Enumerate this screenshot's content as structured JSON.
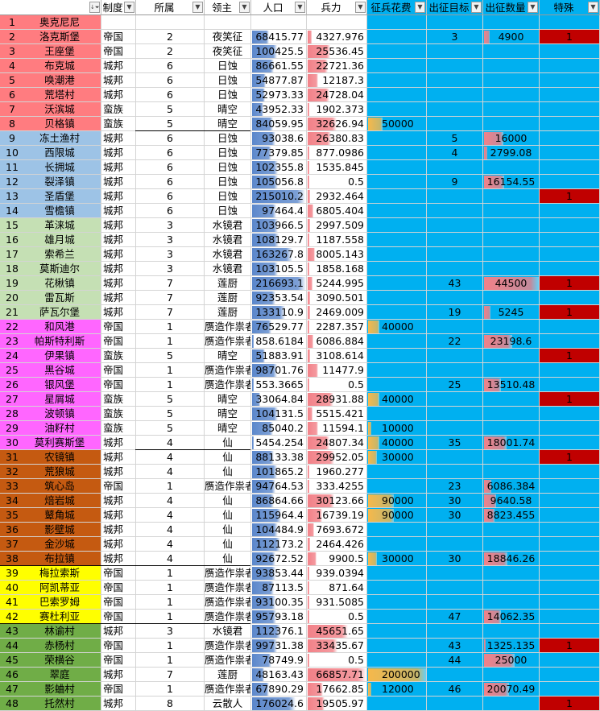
{
  "headers": [
    {
      "label": "",
      "filter_icon": "sort-filter-icon"
    },
    {
      "label": "制度",
      "filter_icon": "filter-dropdown-icon"
    },
    {
      "label": "所属",
      "filter_icon": "filter-dropdown-icon"
    },
    {
      "label": "领主",
      "filter_icon": "filter-dropdown-icon"
    },
    {
      "label": "人口",
      "filter_icon": "filter-dropdown-icon"
    },
    {
      "label": "兵力",
      "filter_icon": "filter-dropdown-icon"
    },
    {
      "label": "征兵花费",
      "filter_icon": "filter-dropdown-icon"
    },
    {
      "label": "出征目标",
      "filter_icon": "filter-dropdown-icon"
    },
    {
      "label": "出征数量",
      "filter_icon": "filter-dropdown-icon"
    },
    {
      "label": "特殊",
      "filter_icon": "filter-dropdown-icon"
    }
  ],
  "colors": {
    "blue_column": "#00b0f0",
    "pop_bar": "#5b87cb",
    "troop_bar": "#f28188",
    "cost_bar": "#f6b84b",
    "qty_bar": "#f28188",
    "special_fill": "#c00000",
    "group": [
      "#ff7c80",
      "#9dc3e6",
      "#c5e0b4",
      "#ff66ff",
      "#c55a11",
      "#ffff00",
      "#70ad47"
    ]
  },
  "scale": {
    "pop_max": 216693.1,
    "troop_max": 66857.71,
    "cost_max": 200000,
    "qty_max": 44500
  },
  "rows": [
    {
      "id": "1",
      "name": "奥克尼尼",
      "regime": "",
      "faction": "",
      "lord": "",
      "pop": "",
      "troops": "",
      "cost": "",
      "target": "",
      "qty": "",
      "special": ""
    },
    {
      "id": "2",
      "name": "洛克斯堡",
      "regime": "帝国",
      "faction": "2",
      "lord": "夜笑征",
      "pop": "68415.77",
      "troops": "4327.976",
      "cost": "",
      "target": "3",
      "qty": "4900",
      "special": "1"
    },
    {
      "id": "3",
      "name": "王座堡",
      "regime": "帝国",
      "faction": "2",
      "lord": "夜笑征",
      "pop": "100425.5",
      "troops": "25536.45",
      "cost": "",
      "target": "",
      "qty": "",
      "special": ""
    },
    {
      "id": "4",
      "name": "布克城",
      "regime": "城邦",
      "faction": "6",
      "lord": "日蚀",
      "pop": "86661.55",
      "troops": "22721.36",
      "cost": "",
      "target": "",
      "qty": "",
      "special": ""
    },
    {
      "id": "5",
      "name": "唤潮港",
      "regime": "城邦",
      "faction": "6",
      "lord": "日蚀",
      "pop": "54877.87",
      "troops": "12187.3",
      "cost": "",
      "target": "",
      "qty": "",
      "special": ""
    },
    {
      "id": "6",
      "name": "荒塔村",
      "regime": "城邦",
      "faction": "6",
      "lord": "日蚀",
      "pop": "52973.33",
      "troops": "24728.04",
      "cost": "",
      "target": "",
      "qty": "",
      "special": ""
    },
    {
      "id": "7",
      "name": "沃滨城",
      "regime": "蛮族",
      "faction": "5",
      "lord": "晴空",
      "pop": "43952.33",
      "troops": "1902.373",
      "cost": "",
      "target": "",
      "qty": "",
      "special": ""
    },
    {
      "id": "8",
      "name": "贝格镇",
      "regime": "蛮族",
      "faction": "5",
      "lord": "晴空",
      "pop": "84059.95",
      "troops": "32626.94",
      "cost": "50000",
      "target": "",
      "qty": "",
      "special": ""
    },
    {
      "id": "9",
      "name": "冻土渔村",
      "regime": "城邦",
      "faction": "6",
      "lord": "日蚀",
      "pop": "93038.6",
      "troops": "26380.83",
      "cost": "",
      "target": "5",
      "qty": "16000",
      "special": ""
    },
    {
      "id": "10",
      "name": "西限城",
      "regime": "城邦",
      "faction": "6",
      "lord": "日蚀",
      "pop": "77379.85",
      "troops": "877.0986",
      "cost": "",
      "target": "4",
      "qty": "2799.08",
      "special": ""
    },
    {
      "id": "11",
      "name": "长拥城",
      "regime": "城邦",
      "faction": "6",
      "lord": "日蚀",
      "pop": "102355.8",
      "troops": "1535.845",
      "cost": "",
      "target": "",
      "qty": "",
      "special": ""
    },
    {
      "id": "12",
      "name": "裂泽镇",
      "regime": "城邦",
      "faction": "6",
      "lord": "日蚀",
      "pop": "105056.8",
      "troops": "0.5",
      "cost": "",
      "target": "9",
      "qty": "16154.55",
      "special": ""
    },
    {
      "id": "13",
      "name": "圣盾堡",
      "regime": "城邦",
      "faction": "6",
      "lord": "日蚀",
      "pop": "215010.2",
      "troops": "2932.464",
      "cost": "",
      "target": "",
      "qty": "",
      "special": "1"
    },
    {
      "id": "14",
      "name": "雪檐镇",
      "regime": "城邦",
      "faction": "6",
      "lord": "日蚀",
      "pop": "97464.4",
      "troops": "6805.404",
      "cost": "",
      "target": "",
      "qty": "",
      "special": ""
    },
    {
      "id": "15",
      "name": "革涞城",
      "regime": "城邦",
      "faction": "3",
      "lord": "水镜君",
      "pop": "103966.5",
      "troops": "2997.509",
      "cost": "",
      "target": "",
      "qty": "",
      "special": ""
    },
    {
      "id": "16",
      "name": "雄月城",
      "regime": "城邦",
      "faction": "3",
      "lord": "水镜君",
      "pop": "108129.7",
      "troops": "1187.558",
      "cost": "",
      "target": "",
      "qty": "",
      "special": ""
    },
    {
      "id": "17",
      "name": "索希兰",
      "regime": "城邦",
      "faction": "3",
      "lord": "水镜君",
      "pop": "163267.8",
      "troops": "8005.143",
      "cost": "",
      "target": "",
      "qty": "",
      "special": ""
    },
    {
      "id": "18",
      "name": "莫斯迪尔",
      "regime": "城邦",
      "faction": "3",
      "lord": "水镜君",
      "pop": "103105.5",
      "troops": "1858.168",
      "cost": "",
      "target": "",
      "qty": "",
      "special": ""
    },
    {
      "id": "19",
      "name": "花楸镇",
      "regime": "城邦",
      "faction": "7",
      "lord": "莲厨",
      "pop": "216693.1",
      "troops": "5244.995",
      "cost": "",
      "target": "43",
      "qty": "44500",
      "special": "1"
    },
    {
      "id": "20",
      "name": "雷瓦斯",
      "regime": "城邦",
      "faction": "7",
      "lord": "莲厨",
      "pop": "92353.54",
      "troops": "3090.501",
      "cost": "",
      "target": "",
      "qty": "",
      "special": ""
    },
    {
      "id": "21",
      "name": "萨瓦尔堡",
      "regime": "城邦",
      "faction": "7",
      "lord": "莲厨",
      "pop": "133110.9",
      "troops": "2469.009",
      "cost": "",
      "target": "19",
      "qty": "5245",
      "special": "1"
    },
    {
      "id": "22",
      "name": "和风港",
      "regime": "帝国",
      "faction": "1",
      "lord": "赝造作祟者",
      "pop": "76529.77",
      "troops": "2287.357",
      "cost": "40000",
      "target": "",
      "qty": "",
      "special": ""
    },
    {
      "id": "23",
      "name": "帕斯特利斯",
      "regime": "帝国",
      "faction": "1",
      "lord": "赝造作祟者",
      "pop": "858.6184",
      "troops": "6086.884",
      "cost": "",
      "target": "22",
      "qty": "23198.6",
      "special": ""
    },
    {
      "id": "24",
      "name": "伊果镇",
      "regime": "蛮族",
      "faction": "5",
      "lord": "晴空",
      "pop": "51883.91",
      "troops": "3108.614",
      "cost": "",
      "target": "",
      "qty": "",
      "special": "1"
    },
    {
      "id": "25",
      "name": "黑谷城",
      "regime": "帝国",
      "faction": "1",
      "lord": "赝造作祟者",
      "pop": "98701.76",
      "troops": "11477.9",
      "cost": "",
      "target": "",
      "qty": "",
      "special": ""
    },
    {
      "id": "26",
      "name": "银风堡",
      "regime": "帝国",
      "faction": "1",
      "lord": "赝造作祟者",
      "pop": "553.3665",
      "troops": "0.5",
      "cost": "",
      "target": "25",
      "qty": "13510.48",
      "special": ""
    },
    {
      "id": "27",
      "name": "星屑城",
      "regime": "蛮族",
      "faction": "5",
      "lord": "晴空",
      "pop": "33064.84",
      "troops": "28931.88",
      "cost": "40000",
      "target": "",
      "qty": "",
      "special": "1"
    },
    {
      "id": "28",
      "name": "波顿镇",
      "regime": "蛮族",
      "faction": "5",
      "lord": "晴空",
      "pop": "104131.5",
      "troops": "5515.421",
      "cost": "",
      "target": "",
      "qty": "",
      "special": ""
    },
    {
      "id": "29",
      "name": "油籽村",
      "regime": "蛮族",
      "faction": "5",
      "lord": "晴空",
      "pop": "85040.2",
      "troops": "11594.1",
      "cost": "10000",
      "target": "",
      "qty": "",
      "special": ""
    },
    {
      "id": "30",
      "name": "莫利赛斯堡",
      "regime": "城邦",
      "faction": "4",
      "lord": "仙",
      "pop": "5454.254",
      "troops": "24807.34",
      "cost": "40000",
      "target": "35",
      "qty": "18001.74",
      "special": ""
    },
    {
      "id": "31",
      "name": "农镜镇",
      "regime": "城邦",
      "faction": "4",
      "lord": "仙",
      "pop": "88133.38",
      "troops": "29952.05",
      "cost": "30000",
      "target": "",
      "qty": "",
      "special": "1"
    },
    {
      "id": "32",
      "name": "荒狼城",
      "regime": "城邦",
      "faction": "4",
      "lord": "仙",
      "pop": "101865.2",
      "troops": "1960.277",
      "cost": "",
      "target": "",
      "qty": "",
      "special": ""
    },
    {
      "id": "33",
      "name": "筑心岛",
      "regime": "帝国",
      "faction": "1",
      "lord": "赝造作祟者",
      "pop": "94764.53",
      "troops": "333.4255",
      "cost": "",
      "target": "23",
      "qty": "6086.384",
      "special": ""
    },
    {
      "id": "34",
      "name": "焙岩城",
      "regime": "城邦",
      "faction": "4",
      "lord": "仙",
      "pop": "86864.66",
      "troops": "30123.66",
      "cost": "90000",
      "target": "30",
      "qty": "9640.58",
      "special": ""
    },
    {
      "id": "35",
      "name": "鼙角城",
      "regime": "城邦",
      "faction": "4",
      "lord": "仙",
      "pop": "115964.4",
      "troops": "16739.19",
      "cost": "90000",
      "target": "30",
      "qty": "8823.455",
      "special": ""
    },
    {
      "id": "36",
      "name": "影壁城",
      "regime": "城邦",
      "faction": "4",
      "lord": "仙",
      "pop": "104484.9",
      "troops": "7693.672",
      "cost": "",
      "target": "",
      "qty": "",
      "special": ""
    },
    {
      "id": "37",
      "name": "金沙城",
      "regime": "城邦",
      "faction": "4",
      "lord": "仙",
      "pop": "112173.2",
      "troops": "2464.426",
      "cost": "",
      "target": "",
      "qty": "",
      "special": ""
    },
    {
      "id": "38",
      "name": "布拉镇",
      "regime": "城邦",
      "faction": "4",
      "lord": "仙",
      "pop": "92672.52",
      "troops": "9900.5",
      "cost": "30000",
      "target": "30",
      "qty": "18846.26",
      "special": ""
    },
    {
      "id": "39",
      "name": "梅拉索斯",
      "regime": "帝国",
      "faction": "1",
      "lord": "赝造作祟者",
      "pop": "93853.44",
      "troops": "939.0394",
      "cost": "",
      "target": "",
      "qty": "",
      "special": ""
    },
    {
      "id": "40",
      "name": "阿凯蒂亚",
      "regime": "帝国",
      "faction": "1",
      "lord": "赝造作祟者",
      "pop": "87113.5",
      "troops": "871.64",
      "cost": "",
      "target": "",
      "qty": "",
      "special": ""
    },
    {
      "id": "41",
      "name": "巴索罗姆",
      "regime": "帝国",
      "faction": "1",
      "lord": "赝造作祟者",
      "pop": "93100.35",
      "troops": "931.5085",
      "cost": "",
      "target": "",
      "qty": "",
      "special": ""
    },
    {
      "id": "42",
      "name": "赛杜利亚",
      "regime": "帝国",
      "faction": "1",
      "lord": "赝造作祟者",
      "pop": "95793.18",
      "troops": "0.5",
      "cost": "",
      "target": "47",
      "qty": "14062.35",
      "special": ""
    },
    {
      "id": "43",
      "name": "林谕村",
      "regime": "城邦",
      "faction": "3",
      "lord": "水镜君",
      "pop": "112376.1",
      "troops": "45651.65",
      "cost": "",
      "target": "",
      "qty": "",
      "special": ""
    },
    {
      "id": "44",
      "name": "赤杨村",
      "regime": "帝国",
      "faction": "1",
      "lord": "赝造作祟者",
      "pop": "99731.38",
      "troops": "33435.67",
      "cost": "",
      "target": "43",
      "qty": "1325.135",
      "special": "1"
    },
    {
      "id": "45",
      "name": "荣横谷",
      "regime": "帝国",
      "faction": "1",
      "lord": "赝造作祟者",
      "pop": "78749.9",
      "troops": "0.5",
      "cost": "",
      "target": "44",
      "qty": "25000",
      "special": ""
    },
    {
      "id": "46",
      "name": "翠庭",
      "regime": "城邦",
      "faction": "7",
      "lord": "莲厨",
      "pop": "48163.43",
      "troops": "66857.71",
      "cost": "200000",
      "target": "",
      "qty": "",
      "special": ""
    },
    {
      "id": "47",
      "name": "影蛐村",
      "regime": "帝国",
      "faction": "1",
      "lord": "赝造作祟者",
      "pop": "67890.29",
      "troops": "17662.85",
      "cost": "12000",
      "target": "46",
      "qty": "20070.49",
      "special": ""
    },
    {
      "id": "48",
      "name": "托然村",
      "regime": "城邦",
      "faction": "8",
      "lord": "云散人",
      "pop": "176024.6",
      "troops": "19505.97",
      "cost": "",
      "target": "",
      "qty": "",
      "special": "1"
    }
  ]
}
